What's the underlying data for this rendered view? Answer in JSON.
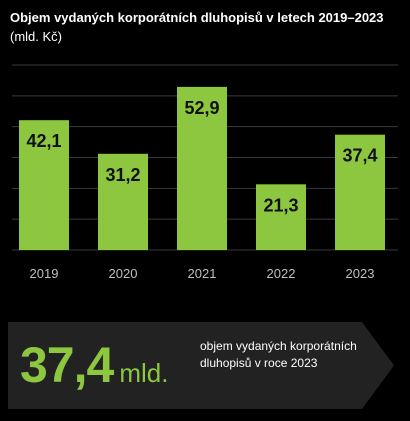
{
  "title": {
    "main": "Objem vydaných korporátních dluhopisů v letech 2019–2023",
    "unit": "(mld. Kč)"
  },
  "chart_data": {
    "type": "bar",
    "categories": [
      "2019",
      "2020",
      "2021",
      "2022",
      "2023"
    ],
    "values": [
      42.1,
      31.2,
      52.9,
      21.3,
      37.4
    ],
    "value_labels": [
      "42,1",
      "31,2",
      "52,9",
      "21,3",
      "37,4"
    ],
    "ylim": [
      0,
      60
    ],
    "grid": true,
    "bar_color": "#8dc63f",
    "grid_color": "#3a3a3a",
    "tick_color": "#bfbfbf"
  },
  "callout": {
    "value": "37,4",
    "unit": "mld.",
    "description": "objem vydaných korporátních dluhopisů v roce 2023",
    "background": "#222222"
  }
}
